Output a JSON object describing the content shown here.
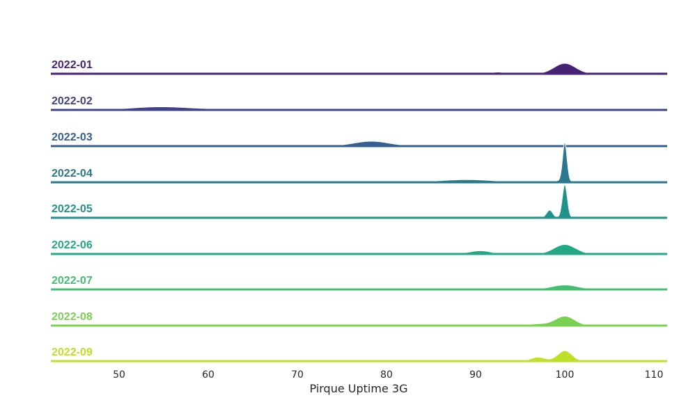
{
  "chart_data": {
    "type": "ridgeline",
    "title": "",
    "xlabel": "Pirque Uptime 3G",
    "ylabel": "",
    "xlim": [
      42,
      112
    ],
    "x_ticks": [
      50,
      60,
      70,
      80,
      90,
      100,
      110
    ],
    "x_tick_labels": [
      "50",
      "60",
      "70",
      "80",
      "90",
      "100",
      "110"
    ],
    "grid": false,
    "legend": "none",
    "colormap": "viridis",
    "density_note": "each row: sum of gaussian components {center, sd, height} describing the kernel density of uptime (%) for that month; heights relative to tallest peak",
    "series": [
      {
        "name": "2022-01",
        "color": "#482374",
        "components": [
          {
            "c": 92.5,
            "s": 0.7,
            "h": 0.12
          },
          {
            "c": 100.0,
            "s": 1.2,
            "h": 0.75
          }
        ]
      },
      {
        "name": "2022-02",
        "color": "#404387",
        "components": [
          {
            "c": 54.5,
            "s": 3.2,
            "h": 0.22
          },
          {
            "c": 61.5,
            "s": 3.5,
            "h": 0.05
          },
          {
            "c": 79.0,
            "s": 4.0,
            "h": 0.02
          }
        ]
      },
      {
        "name": "2022-03",
        "color": "#355f8d",
        "components": [
          {
            "c": 69.5,
            "s": 1.0,
            "h": 0.08
          },
          {
            "c": 78.3,
            "s": 2.0,
            "h": 0.35
          }
        ]
      },
      {
        "name": "2022-04",
        "color": "#2a788e",
        "components": [
          {
            "c": 89.0,
            "s": 3.0,
            "h": 0.19
          },
          {
            "c": 99.0,
            "s": 1.5,
            "h": 0.1
          },
          {
            "c": 100.0,
            "s": 0.25,
            "h": 2.8
          }
        ]
      },
      {
        "name": "2022-05",
        "color": "#21918c",
        "components": [
          {
            "c": 94.0,
            "s": 0.3,
            "h": 0.05
          },
          {
            "c": 98.3,
            "s": 0.35,
            "h": 0.55
          },
          {
            "c": 100.0,
            "s": 0.28,
            "h": 2.4
          }
        ]
      },
      {
        "name": "2022-06",
        "color": "#22a884",
        "components": [
          {
            "c": 90.5,
            "s": 1.2,
            "h": 0.23
          },
          {
            "c": 100.0,
            "s": 1.2,
            "h": 0.68
          }
        ]
      },
      {
        "name": "2022-07",
        "color": "#44bf70",
        "components": [
          {
            "c": 89.0,
            "s": 2.0,
            "h": 0.1
          },
          {
            "c": 100.0,
            "s": 1.5,
            "h": 0.32
          }
        ]
      },
      {
        "name": "2022-08",
        "color": "#7ad151",
        "components": [
          {
            "c": 85.0,
            "s": 3.0,
            "h": 0.02
          },
          {
            "c": 93.2,
            "s": 0.6,
            "h": 0.07
          },
          {
            "c": 97.0,
            "s": 1.0,
            "h": 0.12
          },
          {
            "c": 100.0,
            "s": 1.1,
            "h": 0.68
          }
        ]
      },
      {
        "name": "2022-09",
        "color": "#bddf26",
        "components": [
          {
            "c": 97.0,
            "s": 0.8,
            "h": 0.28
          },
          {
            "c": 100.0,
            "s": 0.8,
            "h": 0.75
          }
        ]
      }
    ]
  }
}
